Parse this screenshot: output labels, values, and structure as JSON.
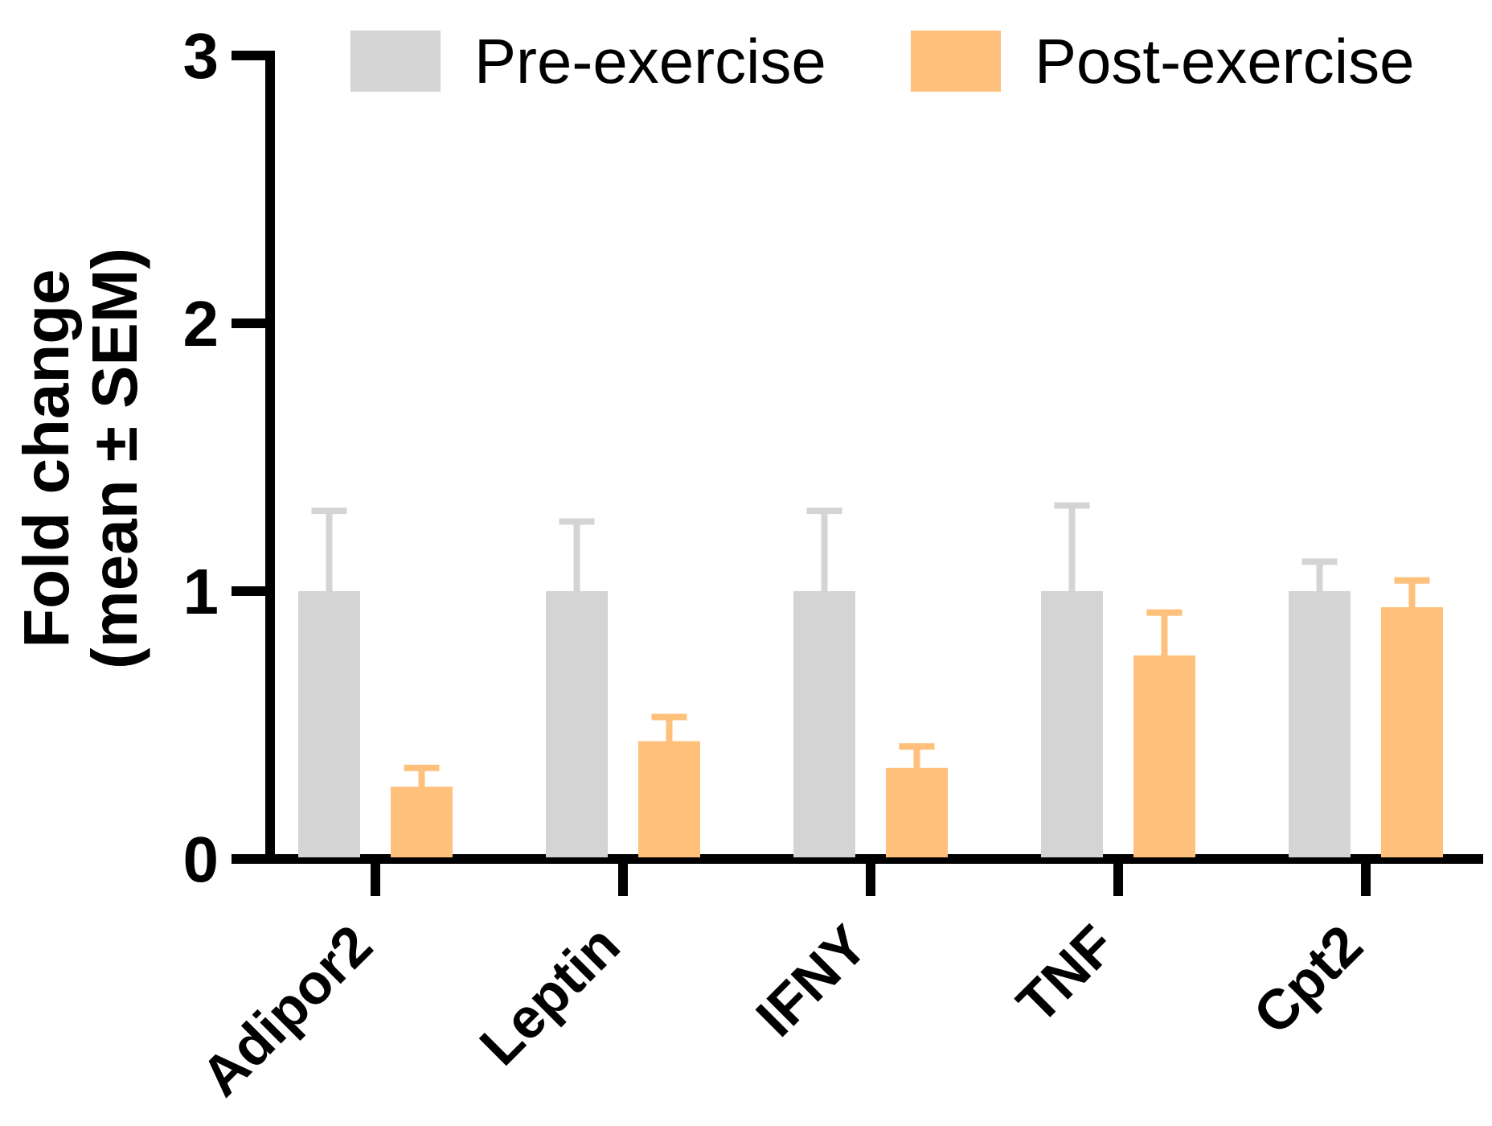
{
  "chart_data": {
    "type": "bar",
    "title": "",
    "categories": [
      "Adipor2",
      "Leptin",
      "IFNY",
      "TNF",
      "Cpt2"
    ],
    "series": [
      {
        "name": "Pre-exercise",
        "color": "#d4d4d4",
        "values": [
          1.0,
          1.0,
          1.0,
          1.0,
          1.0
        ],
        "sem": [
          0.3,
          0.26,
          0.3,
          0.32,
          0.11
        ]
      },
      {
        "name": "Post-exercise",
        "color": "#fec07a",
        "values": [
          0.27,
          0.44,
          0.34,
          0.76,
          0.94
        ],
        "sem": [
          0.07,
          0.09,
          0.08,
          0.16,
          0.1
        ]
      }
    ],
    "error_bars": "SEM, upper side only, colored same as bars",
    "ylabel_lines": [
      "Fold change",
      "(mean ± SEM)"
    ],
    "yticks": [
      "0",
      "1",
      "2",
      "3"
    ],
    "ylim": [
      0,
      3
    ],
    "xlabel": "",
    "grid": false,
    "legend_position": "top",
    "axis_color": "#000000",
    "background_color": "#ffffff",
    "x_tick_label_rotation_deg": -45
  }
}
